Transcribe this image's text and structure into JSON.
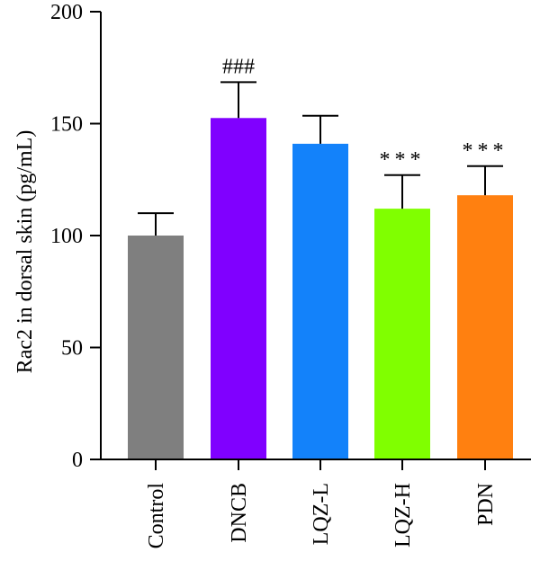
{
  "chart_data": {
    "type": "bar",
    "title": "",
    "xlabel": "",
    "ylabel": "Rac2 in dorsal skin (pg/mL)",
    "ylim": [
      0,
      200
    ],
    "yticks": [
      "0",
      "50",
      "100",
      "150",
      "200"
    ],
    "categories": [
      "Control",
      "DNCB",
      "LQZ-L",
      "LQZ-H",
      "PDN"
    ],
    "values": [
      100,
      152.5,
      141,
      112,
      118
    ],
    "error_upper": [
      10,
      16,
      12.5,
      15,
      13
    ],
    "colors": [
      "#7f7f7f",
      "#8000ff",
      "#1382fa",
      "#80ff00",
      "#ff8010"
    ],
    "annotations": [
      "",
      "###",
      "",
      "***",
      "***"
    ],
    "grid": false,
    "legend": "none"
  }
}
